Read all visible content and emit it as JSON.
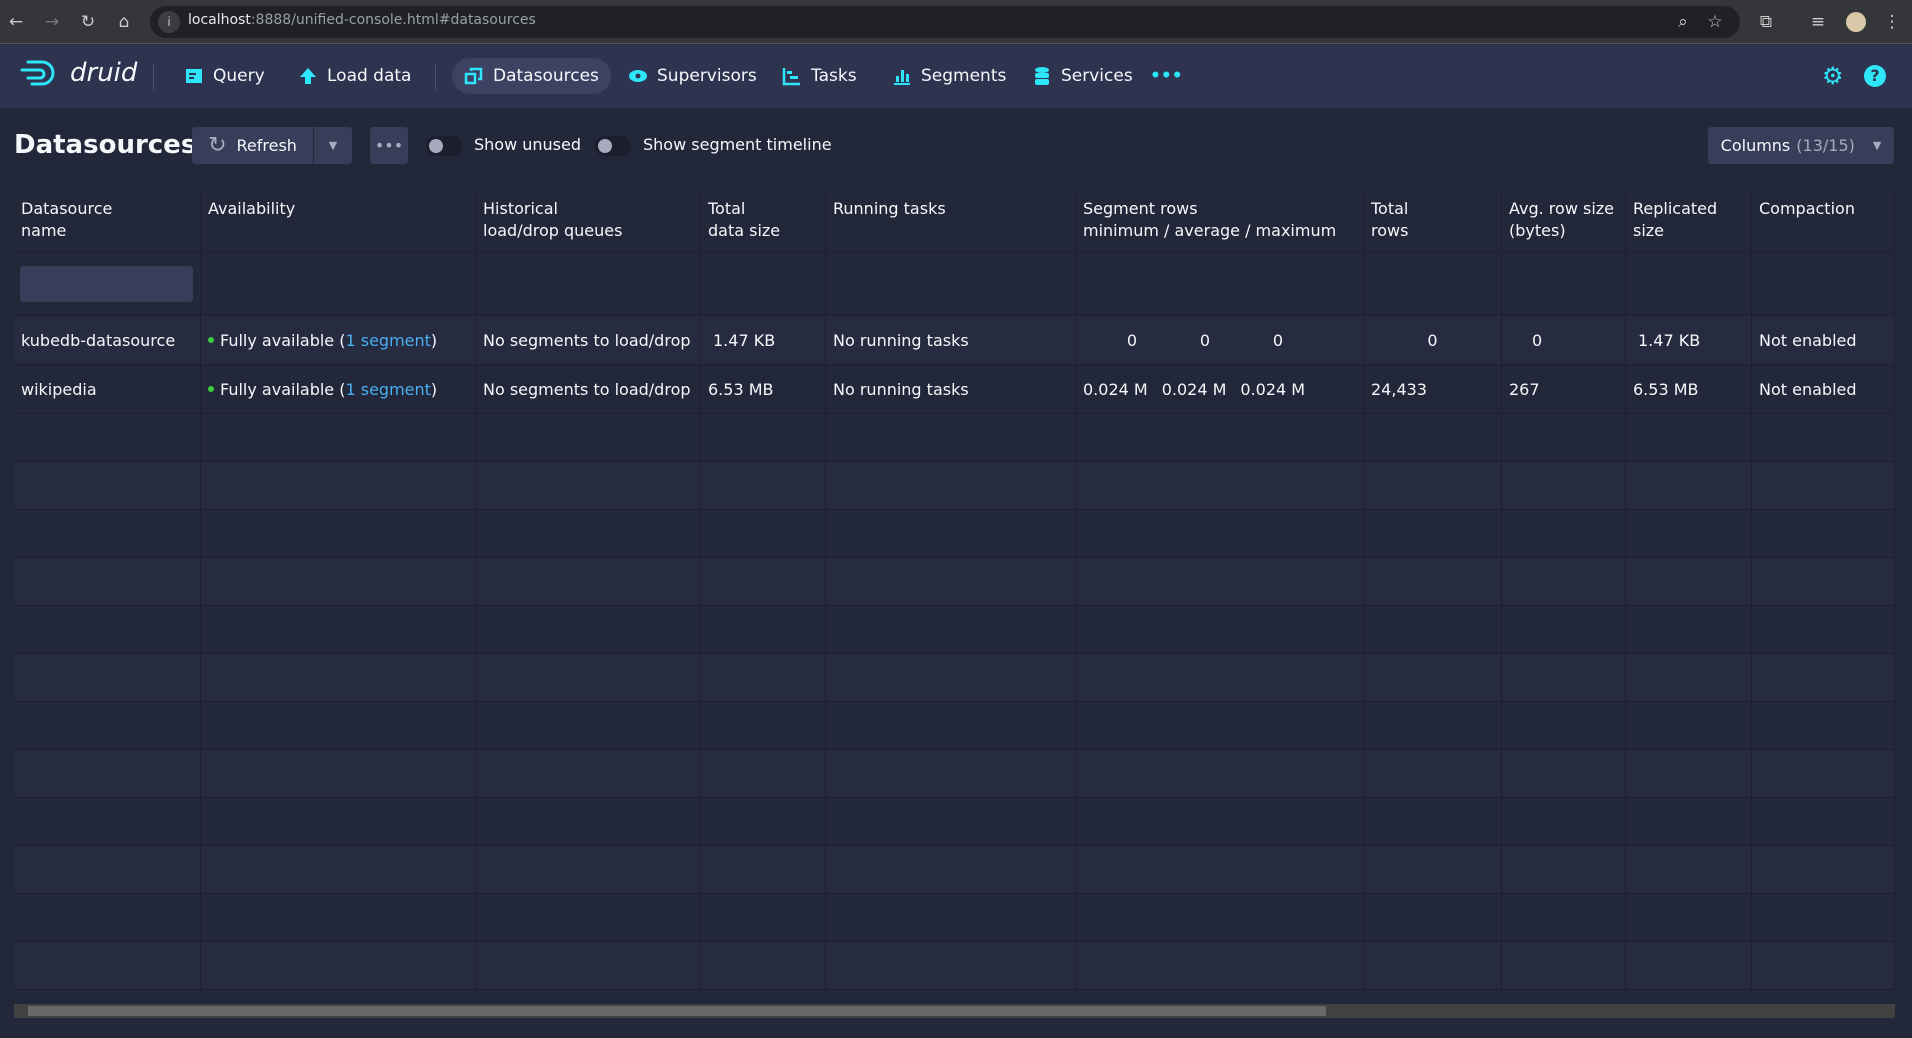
{
  "browser": {
    "url_host": "localhost",
    "url_rest": ":8888/unified-console.html#datasources"
  },
  "nav": {
    "brand": "druid",
    "items": [
      {
        "label": "Query",
        "icon": "query-icon"
      },
      {
        "label": "Load data",
        "icon": "upload-icon"
      },
      {
        "label": "Datasources",
        "icon": "datasources-icon",
        "active": true
      },
      {
        "label": "Supervisors",
        "icon": "eye-icon"
      },
      {
        "label": "Tasks",
        "icon": "tasks-icon"
      },
      {
        "label": "Segments",
        "icon": "segments-icon"
      },
      {
        "label": "Services",
        "icon": "database-icon"
      }
    ],
    "more": "•••"
  },
  "accent": "#2ee6f9",
  "toolbar": {
    "title": "Datasources",
    "refresh": "Refresh",
    "more": "•••",
    "show_unused": "Show unused",
    "show_timeline": "Show segment timeline",
    "columns": "Columns",
    "columns_count": "(13/15)"
  },
  "table": {
    "headers": [
      "Datasource name",
      "Availability",
      "Historical load/drop queues",
      "Total data size",
      "Running tasks",
      "Segment rows minimum / average / maximum",
      "Total rows",
      "Avg. row size (bytes)",
      "Replicated size",
      "Compaction"
    ],
    "header_lines": [
      [
        "Datasource",
        "name"
      ],
      [
        "Availability",
        ""
      ],
      [
        "Historical",
        "load/drop queues"
      ],
      [
        "Total",
        "data size"
      ],
      [
        "Running tasks",
        ""
      ],
      [
        "Segment rows",
        "minimum / average / maximum"
      ],
      [
        "Total",
        "rows"
      ],
      [
        "Avg. row size",
        "(bytes)"
      ],
      [
        "Replicated",
        "size"
      ],
      [
        "Compaction",
        ""
      ]
    ],
    "rows": [
      {
        "name": "kubedb-datasource",
        "avail_prefix": "Fully available (",
        "avail_link": "1 segment",
        "avail_suffix": ")",
        "queues": "No segments to load/drop",
        "size": "1.47 KB",
        "tasks": "No running tasks",
        "seg_min": "0",
        "seg_avg": "0",
        "seg_max": "0",
        "total_rows": "0",
        "avg_row": "0",
        "replicated": "1.47 KB",
        "compaction": "Not enabled"
      },
      {
        "name": "wikipedia",
        "avail_prefix": "Fully available (",
        "avail_link": "1 segment",
        "avail_suffix": ")",
        "queues": "No segments to load/drop",
        "size": "6.53 MB",
        "tasks": "No running tasks",
        "seg_min": "0.024 M",
        "seg_avg": "0.024 M",
        "seg_max": "0.024 M",
        "total_rows": "24,433",
        "avg_row": "267",
        "replicated": "6.53 MB",
        "compaction": "Not enabled"
      }
    ]
  },
  "scrollbar": {
    "thumb_start_percent": 0,
    "thumb_percent": 69
  }
}
